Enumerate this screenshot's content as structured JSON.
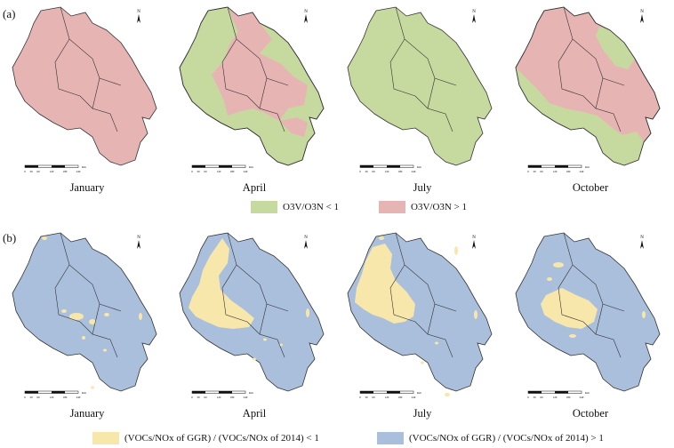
{
  "panels": [
    {
      "label": "(a)",
      "colors": {
        "low": "#c6d99f",
        "high": "#e7b4b4"
      },
      "legend": [
        {
          "text": "O3V/O3N < 1",
          "color": "#c6d99f"
        },
        {
          "text": "O3V/O3N > 1",
          "color": "#e7b4b4"
        }
      ],
      "maps": [
        {
          "month": "January",
          "dominant": "high"
        },
        {
          "month": "April",
          "dominant": "mixed"
        },
        {
          "month": "July",
          "dominant": "low"
        },
        {
          "month": "October",
          "dominant": "mixed"
        }
      ]
    },
    {
      "label": "(b)",
      "colors": {
        "low": "#f8e7aa",
        "high": "#a9bfdc"
      },
      "legend": [
        {
          "text": "(VOCs/NOx of GGR) / (VOCs/NOx of 2014) < 1",
          "color": "#f8e7aa"
        },
        {
          "text": "(VOCs/NOx of GGR) / (VOCs/NOx of 2014) > 1",
          "color": "#a9bfdc"
        }
      ],
      "maps": [
        {
          "month": "January",
          "dominant": "high"
        },
        {
          "month": "April",
          "dominant": "high"
        },
        {
          "month": "July",
          "dominant": "high"
        },
        {
          "month": "October",
          "dominant": "high"
        }
      ]
    }
  ],
  "north_arrow": "N",
  "scale_bar": {
    "ticks": [
      "0",
      "30",
      "60",
      "120",
      "180",
      "240"
    ],
    "unit": "Km"
  }
}
